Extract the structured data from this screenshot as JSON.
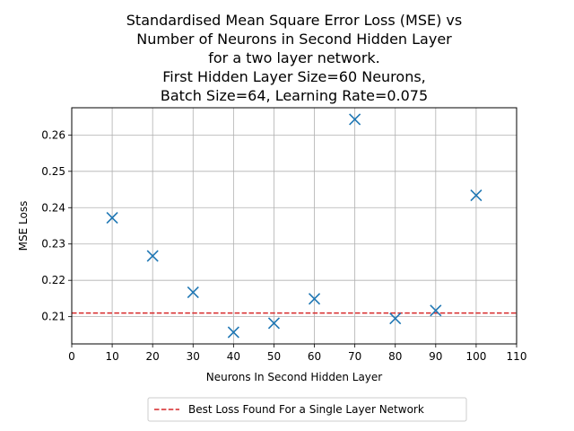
{
  "chart_data": {
    "type": "scatter",
    "title_lines": [
      "Standardised Mean Square Error Loss (MSE) vs",
      "Number of Neurons in Second Hidden Layer",
      "for a two layer network.",
      "First Hidden Layer Size=60 Neurons,",
      "Batch Size=64, Learning Rate=0.075"
    ],
    "xlabel": "Neurons In Second Hidden Layer",
    "ylabel": "MSE Loss",
    "xlim": [
      0,
      110
    ],
    "ylim": [
      0.2025,
      0.2675
    ],
    "x_ticks": [
      0,
      10,
      20,
      30,
      40,
      50,
      60,
      70,
      80,
      90,
      100,
      110
    ],
    "y_ticks": [
      0.21,
      0.22,
      0.23,
      0.24,
      0.25,
      0.26
    ],
    "x_tick_labels": [
      "0",
      "10",
      "20",
      "30",
      "40",
      "50",
      "60",
      "70",
      "80",
      "90",
      "100",
      "110"
    ],
    "y_tick_labels": [
      "0.21",
      "0.22",
      "0.23",
      "0.24",
      "0.25",
      "0.26"
    ],
    "grid": true,
    "series": [
      {
        "marker": "x",
        "color": "#1f77b4",
        "x": [
          10,
          20,
          30,
          40,
          50,
          60,
          70,
          80,
          90,
          100
        ],
        "y": [
          0.2372,
          0.2267,
          0.2167,
          0.2057,
          0.2082,
          0.2149,
          0.2643,
          0.2095,
          0.2117,
          0.2434
        ]
      }
    ],
    "reference_line": {
      "name": "Best Loss Found For a Single Layer Network",
      "y": 0.211,
      "color": "#d62728",
      "style": "dashed"
    },
    "legend_placement": "bottom-center, below plot"
  }
}
